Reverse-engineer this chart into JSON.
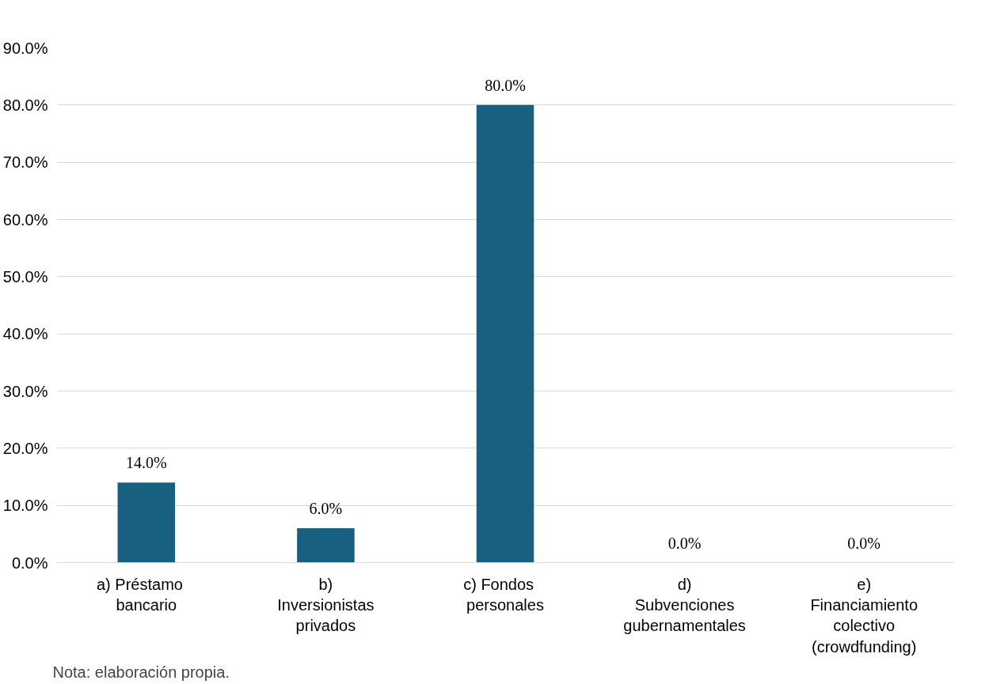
{
  "chart_data": {
    "type": "bar",
    "categories": [
      "a)    Préstamo\nbancario",
      "b)\nInversionistas\nprivados",
      "c)    Fondos\npersonales",
      "d)\nSubvenciones\ngubernamentales",
      "e)\nFinanciamiento\ncolectivo\n(crowdfunding)"
    ],
    "values": [
      14,
      6,
      80,
      0,
      0
    ],
    "value_labels": [
      "14.0%",
      "6.0%",
      "80.0%",
      "0.0%",
      "0.0%"
    ],
    "color": "#17607f",
    "ylim": [
      0,
      90
    ],
    "yticks": [
      {
        "value": 0,
        "label": "0.0%"
      },
      {
        "value": 10,
        "label": "10.0%"
      },
      {
        "value": 20,
        "label": "20.0%"
      },
      {
        "value": 30,
        "label": "30.0%"
      },
      {
        "value": 40,
        "label": "40.0%"
      },
      {
        "value": 50,
        "label": "50.0%"
      },
      {
        "value": 60,
        "label": "60.0%"
      },
      {
        "value": 70,
        "label": "70.0%"
      },
      {
        "value": 80,
        "label": "80.0%"
      },
      {
        "value": 90,
        "label": "90.0%"
      }
    ],
    "grid": "y",
    "annotations": [
      "Nota: elaboración propia."
    ]
  }
}
